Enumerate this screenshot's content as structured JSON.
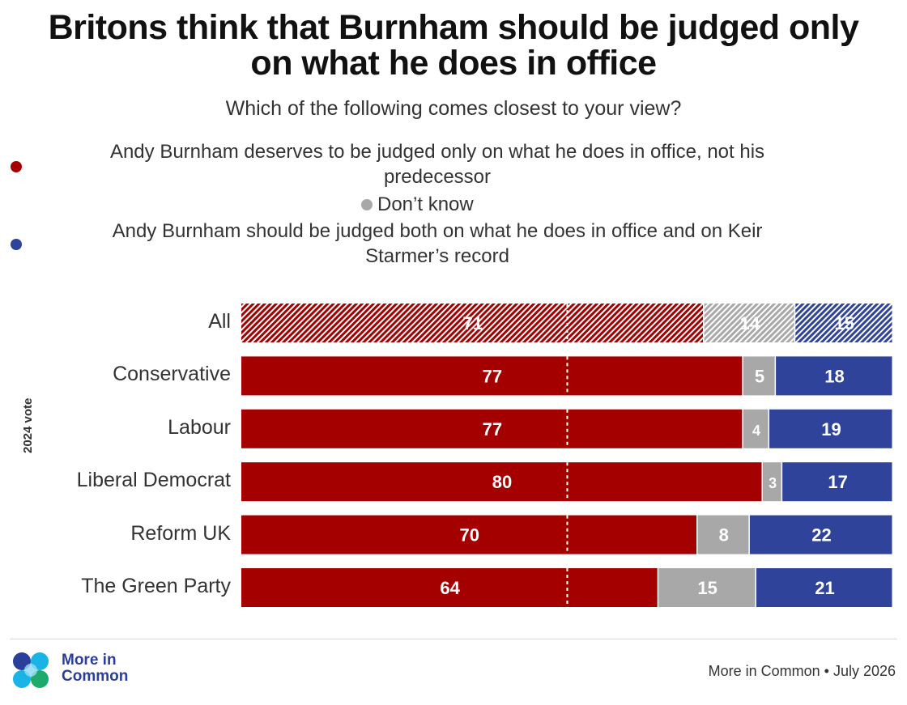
{
  "title_line1": "Britons think that Burnham should be judged only",
  "title_line2": "on what he does in office",
  "subtitle": "Which of the following comes closest to your view?",
  "legend": [
    {
      "line1": "Andy Burnham deserves to be judged only on what he does in office, not his",
      "line2": "predecessor",
      "color": "#a50000"
    },
    {
      "line1": "Don’t know",
      "line2": "",
      "color": "#a8a8a8"
    },
    {
      "line1": "Andy Burnham should be judged both on what he does in office and on Keir",
      "line2": "Starmer’s record",
      "color": "#2e4399"
    }
  ],
  "chart_data": {
    "type": "bar",
    "orientation": "horizontal",
    "stacked": true,
    "ylabel": "2024 vote",
    "categories": [
      "All",
      "Conservative",
      "Labour",
      "Liberal Democrat",
      "Reform UK",
      "The Green Party"
    ],
    "series": [
      {
        "name": "Andy Burnham deserves to be judged only on what he does in office, not his predecessor",
        "color": "#a50000",
        "values": [
          71,
          77,
          77,
          80,
          70,
          64
        ]
      },
      {
        "name": "Don’t know",
        "color": "#a8a8a8",
        "values": [
          14,
          5,
          4,
          3,
          8,
          15
        ]
      },
      {
        "name": "Andy Burnham should be judged both on what he does in office and on Keir Starmer’s record",
        "color": "#2e4399",
        "values": [
          15,
          18,
          19,
          17,
          22,
          21
        ]
      }
    ],
    "xlim": [
      0,
      100
    ],
    "reference_line": 50,
    "hatched_categories": [
      "All"
    ]
  },
  "logo": {
    "line1": "More in",
    "line2": "Common"
  },
  "source": "More in Common • July 2026"
}
